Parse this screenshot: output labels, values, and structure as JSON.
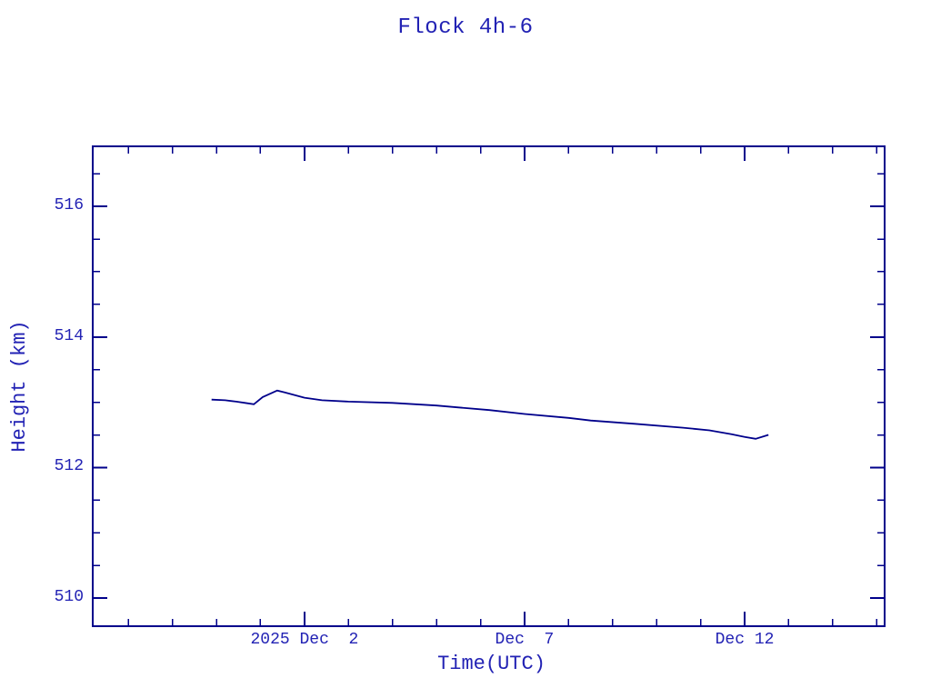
{
  "window": {
    "background": "#ffffff"
  },
  "chart": {
    "title": "Flock 4h-6",
    "xlabel": "Time(UTC)",
    "ylabel": "Height (km)"
  },
  "colors": {
    "line": "#00008b",
    "axis": "#00008b",
    "text": "#2222b4",
    "background": "#ffffff"
  },
  "chart_data": {
    "type": "line",
    "title": "Flock 4h-6",
    "xlabel": "Time(UTC)",
    "ylabel": "Height (km)",
    "grid": false,
    "legend": null,
    "x_unit": "days relative to 2025 Dec 2 00:00 UTC",
    "xlim": [
      -4.81,
      13.18
    ],
    "ylim": [
      509.57,
      516.92
    ],
    "x_major_ticks": [
      {
        "t": 0,
        "label": "2025 Dec  2"
      },
      {
        "t": 5,
        "label": "Dec  7"
      },
      {
        "t": 10,
        "label": "Dec 12"
      }
    ],
    "x_minor_ticks": {
      "start": -4,
      "end": 13,
      "step": 1
    },
    "y_major_ticks": [
      {
        "v": 510,
        "label": "510"
      },
      {
        "v": 512,
        "label": "512"
      },
      {
        "v": 514,
        "label": "514"
      },
      {
        "v": 516,
        "label": "516"
      }
    ],
    "y_minor_ticks": {
      "start": 510,
      "end": 516.5,
      "step": 0.5
    },
    "series": [
      {
        "name": "Flock 4h-6 height",
        "points": [
          [
            -2.11,
            513.04
          ],
          [
            -1.8,
            513.03
          ],
          [
            -1.55,
            513.01
          ],
          [
            -1.35,
            512.99
          ],
          [
            -1.15,
            512.97
          ],
          [
            -0.95,
            513.08
          ],
          [
            -0.62,
            513.18
          ],
          [
            -0.45,
            513.15
          ],
          [
            0.0,
            513.07
          ],
          [
            0.4,
            513.03
          ],
          [
            1.0,
            513.01
          ],
          [
            2.0,
            512.99
          ],
          [
            3.0,
            512.95
          ],
          [
            3.5,
            512.92
          ],
          [
            4.2,
            512.88
          ],
          [
            5.0,
            512.82
          ],
          [
            6.0,
            512.76
          ],
          [
            6.5,
            512.72
          ],
          [
            7.5,
            512.67
          ],
          [
            8.6,
            512.61
          ],
          [
            9.2,
            512.57
          ],
          [
            9.7,
            512.51
          ],
          [
            10.0,
            512.47
          ],
          [
            10.25,
            512.44
          ],
          [
            10.54,
            512.5
          ]
        ]
      }
    ]
  }
}
